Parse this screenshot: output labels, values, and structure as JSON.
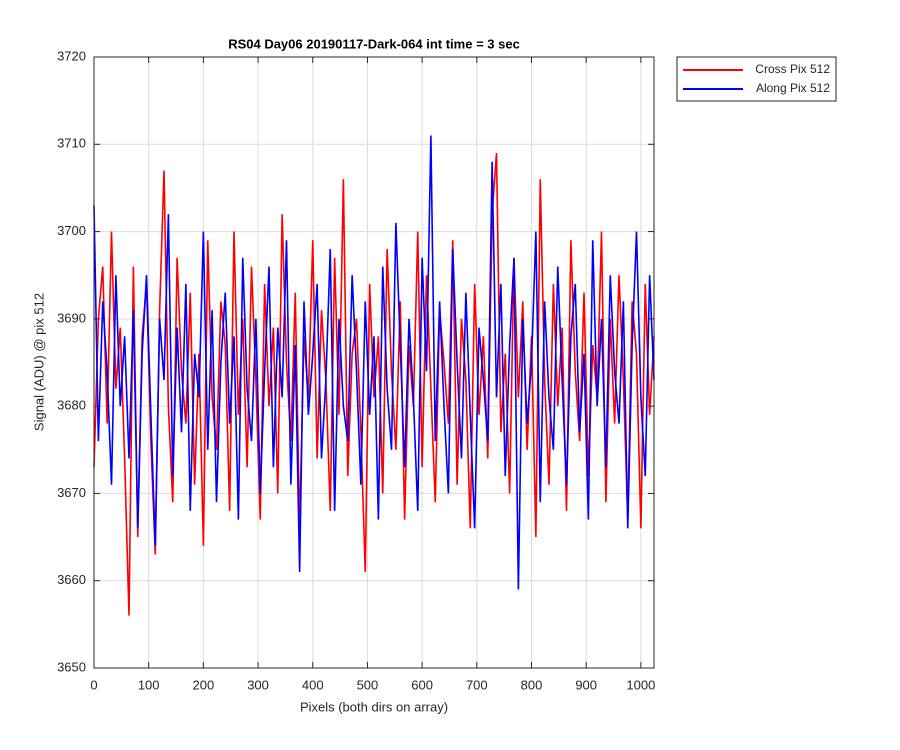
{
  "chart_data": {
    "type": "line",
    "title": "RS04 Day06 20190117-Dark-064 int time = 3 sec",
    "x_label": "Pixels (both dirs on array)",
    "y_label": "Signal (ADU) @ pix 512",
    "xlim": [
      0,
      1024
    ],
    "ylim": [
      3650,
      3720
    ],
    "xticks": [
      0,
      100,
      200,
      300,
      400,
      500,
      600,
      700,
      800,
      900,
      1000
    ],
    "yticks": [
      3650,
      3660,
      3670,
      3680,
      3690,
      3700,
      3710,
      3720
    ],
    "grid": true,
    "legend": "outside-northeast",
    "x": [
      0,
      8,
      16,
      24,
      32,
      40,
      48,
      56,
      64,
      72,
      80,
      88,
      96,
      104,
      112,
      120,
      128,
      136,
      144,
      152,
      160,
      168,
      176,
      184,
      192,
      200,
      208,
      216,
      224,
      232,
      240,
      248,
      256,
      264,
      272,
      280,
      288,
      296,
      304,
      312,
      320,
      328,
      336,
      344,
      352,
      360,
      368,
      376,
      384,
      392,
      400,
      408,
      416,
      424,
      432,
      440,
      448,
      456,
      464,
      472,
      480,
      488,
      496,
      504,
      512,
      520,
      528,
      536,
      544,
      552,
      560,
      568,
      576,
      584,
      592,
      600,
      608,
      616,
      624,
      632,
      640,
      648,
      656,
      664,
      672,
      680,
      688,
      696,
      704,
      712,
      720,
      728,
      736,
      744,
      752,
      760,
      768,
      776,
      784,
      792,
      800,
      808,
      816,
      824,
      832,
      840,
      848,
      856,
      864,
      872,
      880,
      888,
      896,
      904,
      912,
      920,
      928,
      936,
      944,
      952,
      960,
      968,
      976,
      984,
      992,
      1000,
      1008,
      1016,
      1024
    ],
    "series": [
      {
        "name": "Cross Pix 512",
        "color": "#ff0000",
        "values": [
          3673,
          3690,
          3696,
          3678,
          3700,
          3682,
          3689,
          3674,
          3656,
          3696,
          3665,
          3688,
          3694,
          3676,
          3663,
          3691,
          3707,
          3680,
          3669,
          3697,
          3684,
          3678,
          3693,
          3671,
          3686,
          3664,
          3699,
          3681,
          3675,
          3692,
          3687,
          3668,
          3700,
          3679,
          3690,
          3673,
          3696,
          3683,
          3667,
          3694,
          3680,
          3689,
          3670,
          3702,
          3685,
          3676,
          3693,
          3666,
          3688,
          3681,
          3699,
          3674,
          3691,
          3683,
          3668,
          3697,
          3679,
          3706,
          3672,
          3686,
          3690,
          3677,
          3661,
          3694,
          3681,
          3688,
          3670,
          3698,
          3684,
          3675,
          3692,
          3667,
          3687,
          3680,
          3700,
          3673,
          3695,
          3682,
          3669,
          3691,
          3685,
          3678,
          3699,
          3671,
          3690,
          3683,
          3666,
          3694,
          3679,
          3688,
          3674,
          3702,
          3709,
          3677,
          3686,
          3670,
          3697,
          3681,
          3692,
          3675,
          3688,
          3665,
          3706,
          3683,
          3671,
          3694,
          3680,
          3689,
          3668,
          3699,
          3684,
          3676,
          3693,
          3672,
          3687,
          3681,
          3700,
          3669,
          3690,
          3678,
          3695,
          3683,
          3667,
          3692,
          3686,
          3666,
          3694,
          3679,
          3688
        ]
      },
      {
        "name": "Along Pix 512",
        "color": "#0000ff",
        "values": [
          3703,
          3676,
          3692,
          3684,
          3671,
          3695,
          3680,
          3688,
          3674,
          3691,
          3666,
          3686,
          3695,
          3679,
          3664,
          3690,
          3683,
          3702,
          3672,
          3689,
          3677,
          3694,
          3668,
          3686,
          3681,
          3700,
          3675,
          3691,
          3669,
          3685,
          3693,
          3678,
          3688,
          3667,
          3697,
          3682,
          3676,
          3690,
          3670,
          3684,
          3696,
          3673,
          3689,
          3681,
          3699,
          3671,
          3687,
          3661,
          3692,
          3679,
          3686,
          3694,
          3674,
          3683,
          3698,
          3668,
          3690,
          3680,
          3676,
          3695,
          3684,
          3671,
          3692,
          3679,
          3688,
          3667,
          3696,
          3682,
          3675,
          3701,
          3687,
          3673,
          3690,
          3681,
          3668,
          3697,
          3684,
          3711,
          3676,
          3692,
          3680,
          3670,
          3698,
          3685,
          3674,
          3693,
          3679,
          3666,
          3689,
          3683,
          3676,
          3708,
          3681,
          3694,
          3672,
          3687,
          3697,
          3659,
          3690,
          3678,
          3685,
          3700,
          3669,
          3692,
          3681,
          3675,
          3696,
          3683,
          3671,
          3688,
          3694,
          3677,
          3686,
          3667,
          3699,
          3680,
          3690,
          3673,
          3695,
          3684,
          3678,
          3692,
          3666,
          3687,
          3700,
          3681,
          3672,
          3695,
          3683
        ]
      }
    ]
  }
}
